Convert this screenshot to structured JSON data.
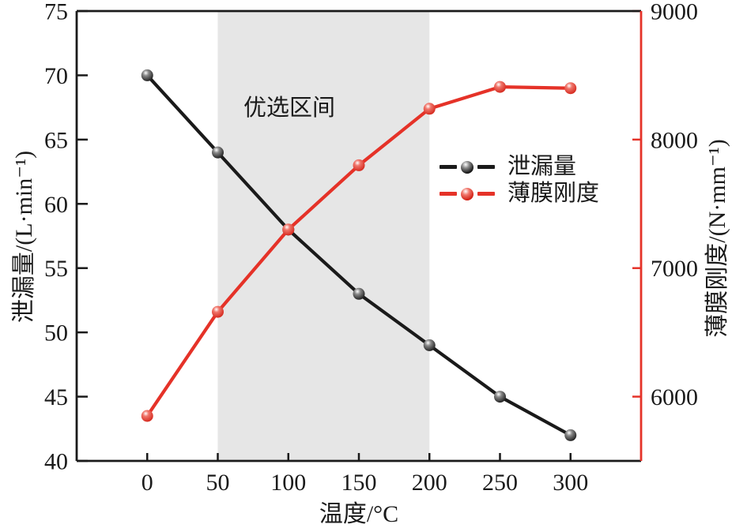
{
  "figure": {
    "background": "#ffffff",
    "text_color": "#1a1a1a"
  },
  "chart_data": {
    "type": "line",
    "title": "",
    "xlabel": "温度/°C",
    "xlim": [
      -50,
      350
    ],
    "x_ticks": [
      0,
      50,
      100,
      150,
      200,
      250,
      300
    ],
    "x": [
      0,
      50,
      100,
      150,
      200,
      250,
      300
    ],
    "grid": false,
    "left_axis": {
      "label": "泄漏量/(L·min⁻¹)",
      "lim": [
        40,
        75
      ],
      "ticks": [
        75,
        70,
        65,
        60,
        55,
        50,
        45,
        40
      ],
      "spine_color": "#1a1a1a",
      "tick_label_color": "#1a1a1a"
    },
    "right_axis": {
      "label": "薄膜刚度/(N·mm⁻¹)",
      "lim": [
        5500,
        9000
      ],
      "ticks": [
        9000,
        8000,
        7000,
        6000
      ],
      "spine_color": "#e53228",
      "tick_label_color": "#1a1a1a"
    },
    "band": {
      "label": "优选区间",
      "x_from": 50,
      "x_to": 200,
      "color": "#e6e6e6"
    },
    "series": [
      {
        "name": "泄漏量",
        "axis": "left",
        "color": "#1a1a1a",
        "ball": [
          "#ffffff",
          "#8a8a8a",
          "#0d0d0d"
        ],
        "values": [
          70,
          64,
          58,
          53,
          49,
          45,
          42
        ]
      },
      {
        "name": "薄膜刚度",
        "axis": "right",
        "color": "#e53228",
        "ball": [
          "#ffffff",
          "#f0766b",
          "#d01b10"
        ],
        "values": [
          5850,
          6660,
          7300,
          7800,
          8240,
          8410,
          8400
        ]
      }
    ],
    "legend_position": "center-right"
  }
}
